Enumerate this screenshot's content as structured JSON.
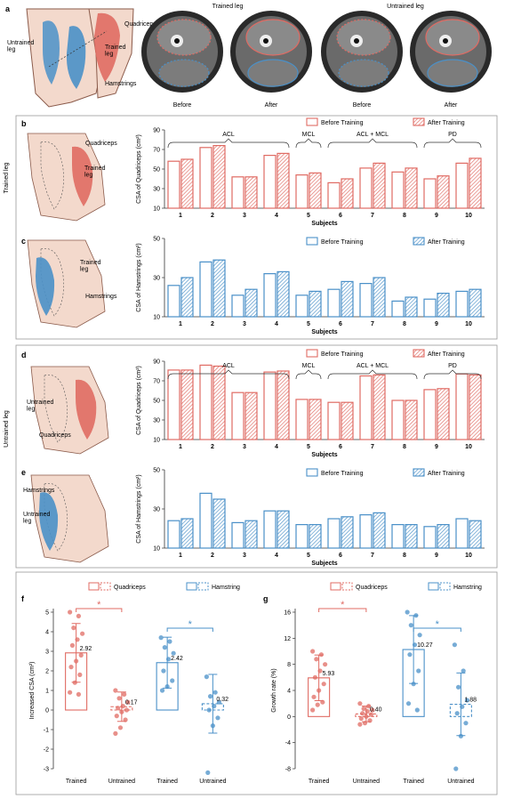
{
  "colors": {
    "quad": "#e06b63",
    "ham": "#4a90c8",
    "quad_fill": "#f2b7ae",
    "ham_fill": "#a9cbe8",
    "skin": "#f3d9cc",
    "skin_stroke": "#8a5a4a"
  },
  "panel_a": {
    "letter": "a",
    "thigh_labels": {
      "untrained": "Untrained\nleg",
      "quadriceps": "Quadriceps",
      "trained": "Trained\nleg",
      "hamstrings": "Hamstrings"
    },
    "trained_title": "Trained leg",
    "untrained_title": "Untrained leg",
    "captions": [
      "Before",
      "After",
      "Before",
      "After"
    ]
  },
  "side_labels": {
    "trained": "Trained leg",
    "untrained": "Untrained leg"
  },
  "bar_panels": [
    {
      "letter": "b",
      "labels": [
        "Quadriceps",
        "Trained\nleg"
      ],
      "muscle": "quad"
    },
    {
      "letter": "c",
      "labels": [
        "Trained\nleg",
        "Hamstrings"
      ],
      "muscle": "ham"
    },
    {
      "letter": "d",
      "labels": [
        "Untrained\nleg",
        "Quadriceps"
      ],
      "muscle": "quad"
    },
    {
      "letter": "e",
      "labels": [
        "Hamstrings",
        "Untrained\nleg"
      ],
      "muscle": "ham"
    }
  ],
  "dot_panels": [
    {
      "letter": "f"
    },
    {
      "letter": "g"
    }
  ],
  "chart_data": [
    {
      "id": "b",
      "type": "bar",
      "title": "",
      "ylabel": "CSA of Quadriceps (cm²)",
      "xlabel": "Subjects",
      "ylim": [
        10,
        90
      ],
      "yticks": [
        10,
        30,
        50,
        70,
        90
      ],
      "categories": [
        "1",
        "2",
        "3",
        "4",
        "5",
        "6",
        "7",
        "8",
        "9",
        "10"
      ],
      "groups": [
        {
          "label": "ACL",
          "from": 1,
          "to": 4
        },
        {
          "label": "MCL",
          "from": 5,
          "to": 5
        },
        {
          "label": "ACL + MCL",
          "from": 6,
          "to": 8
        },
        {
          "label": "PD",
          "from": 9,
          "to": 10
        }
      ],
      "series": [
        {
          "name": "Before Training",
          "values": [
            58,
            72,
            42,
            64,
            44,
            36,
            51,
            47,
            40,
            56
          ]
        },
        {
          "name": "After Training",
          "values": [
            60,
            74,
            42,
            66,
            46,
            40,
            56,
            51,
            43,
            61
          ]
        }
      ]
    },
    {
      "id": "c",
      "type": "bar",
      "title": "",
      "ylabel": "CSA of Hamstrings (cm²)",
      "xlabel": "Subjects",
      "ylim": [
        10,
        50
      ],
      "yticks": [
        10,
        30,
        50
      ],
      "categories": [
        "1",
        "2",
        "3",
        "4",
        "5",
        "6",
        "7",
        "8",
        "9",
        "10"
      ],
      "series": [
        {
          "name": "Before Training",
          "values": [
            26,
            38,
            21,
            32,
            21,
            24,
            27,
            18,
            19,
            23
          ]
        },
        {
          "name": "After Training",
          "values": [
            30,
            39,
            24,
            33,
            23,
            28,
            30,
            20,
            22,
            24
          ]
        }
      ]
    },
    {
      "id": "d",
      "type": "bar",
      "title": "",
      "ylabel": "CSA of Quadriceps (cm²)",
      "xlabel": "Subjects",
      "ylim": [
        10,
        90
      ],
      "yticks": [
        10,
        30,
        50,
        70,
        90
      ],
      "categories": [
        "1",
        "2",
        "3",
        "4",
        "5",
        "6",
        "7",
        "8",
        "9",
        "10"
      ],
      "groups": [
        {
          "label": "ACL",
          "from": 1,
          "to": 4
        },
        {
          "label": "MCL",
          "from": 5,
          "to": 5
        },
        {
          "label": "ACL + MCL",
          "from": 6,
          "to": 8
        },
        {
          "label": "PD",
          "from": 9,
          "to": 10
        }
      ],
      "series": [
        {
          "name": "Before Training",
          "values": [
            81,
            86,
            58,
            79,
            51,
            48,
            75,
            50,
            61,
            77
          ]
        },
        {
          "name": "After Training",
          "values": [
            81,
            85,
            58,
            80,
            51,
            48,
            76,
            50,
            62,
            76
          ]
        }
      ]
    },
    {
      "id": "e",
      "type": "bar",
      "title": "",
      "ylabel": "CSA of Hamstrings (cm²)",
      "xlabel": "Subjects",
      "ylim": [
        10,
        50
      ],
      "yticks": [
        10,
        30,
        50
      ],
      "categories": [
        "1",
        "2",
        "3",
        "4",
        "5",
        "6",
        "7",
        "8",
        "9",
        "10"
      ],
      "series": [
        {
          "name": "Before Training",
          "values": [
            24,
            38,
            23,
            29,
            22,
            25,
            27,
            22,
            21,
            25
          ]
        },
        {
          "name": "After Training",
          "values": [
            25,
            35,
            24,
            29,
            22,
            26,
            28,
            22,
            22,
            24
          ]
        }
      ]
    },
    {
      "id": "f",
      "type": "scatter",
      "title": "",
      "ylabel": "Increased  CSA (cm²)",
      "ylim": [
        -3,
        5
      ],
      "yticks": [
        -3,
        -2,
        -1,
        0,
        1,
        2,
        3,
        4,
        5
      ],
      "categories": [
        "Trained",
        "Untrained",
        "Trained",
        "Untrained"
      ],
      "legend": [
        "Quadriceps",
        "Hamstring"
      ],
      "groups": [
        {
          "muscle": "quad",
          "trained": true,
          "mean": 2.92,
          "label": "2.92",
          "sd": 1.5,
          "points": [
            5.0,
            4.8,
            4.2,
            3.9,
            3.6,
            3.3,
            2.8,
            2.5,
            2.2,
            1.8,
            1.4,
            0.9,
            0.8
          ]
        },
        {
          "muscle": "quad",
          "trained": false,
          "mean": 0.17,
          "label": "0.17",
          "sd": 0.75,
          "points": [
            1.0,
            0.8,
            0.6,
            0.4,
            0.2,
            0.1,
            0.0,
            -0.1,
            -0.3,
            -0.5,
            -0.9,
            -1.2
          ]
        },
        {
          "muscle": "ham",
          "trained": true,
          "mean": 2.42,
          "label": "2.42",
          "sd": 1.3,
          "points": [
            3.7,
            3.5,
            3.2,
            2.9,
            2.6,
            2.0,
            1.5,
            1.2,
            1.0
          ]
        },
        {
          "muscle": "ham",
          "trained": false,
          "mean": 0.32,
          "label": "0.32",
          "sd": 1.5,
          "points": [
            1.7,
            0.9,
            0.7,
            0.4,
            0.2,
            0.0,
            -0.4,
            -0.8,
            -3.2
          ]
        }
      ],
      "significance": [
        "*",
        "*"
      ]
    },
    {
      "id": "g",
      "type": "scatter",
      "title": "",
      "ylabel": "Growth rate (%)",
      "ylim": [
        -8,
        16
      ],
      "yticks": [
        -8,
        -4,
        0,
        4,
        8,
        12,
        16
      ],
      "categories": [
        "Trained",
        "Untrained",
        "Trained",
        "Untrained"
      ],
      "legend": [
        "Quadriceps",
        "Hamstring"
      ],
      "groups": [
        {
          "muscle": "quad",
          "trained": true,
          "mean": 5.93,
          "label": "5.93",
          "sd": 3.5,
          "points": [
            10.0,
            9.5,
            8.8,
            8.0,
            7.0,
            6.0,
            5.0,
            4.0,
            3.0,
            2.2,
            1.8,
            1.0
          ]
        },
        {
          "muscle": "quad",
          "trained": false,
          "mean": 0.4,
          "label": "0.40",
          "sd": 1.2,
          "points": [
            2.0,
            1.6,
            1.2,
            1.0,
            0.8,
            0.5,
            0.3,
            0.0,
            -0.3,
            -0.6,
            -1.0,
            -1.2
          ]
        },
        {
          "muscle": "ham",
          "trained": true,
          "mean": 10.27,
          "label": "10.27",
          "sd": 5.2,
          "points": [
            16.0,
            15.5,
            14.0,
            12.5,
            11.0,
            9.5,
            7.0,
            5.0,
            2.0,
            1.0
          ]
        },
        {
          "muscle": "ham",
          "trained": false,
          "mean": 1.88,
          "label": "1.88",
          "sd": 4.8,
          "points": [
            11.0,
            7.0,
            4.5,
            2.5,
            1.5,
            0.5,
            -1.0,
            -3.0,
            -8.0
          ]
        }
      ],
      "significance": [
        "*",
        "*"
      ]
    }
  ]
}
